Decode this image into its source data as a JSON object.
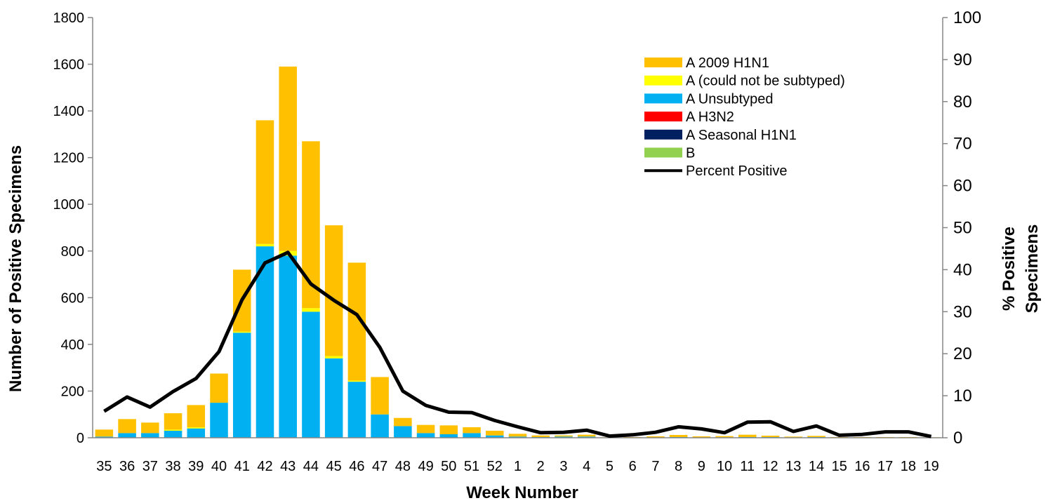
{
  "chart_data": {
    "type": "bar",
    "stacked": true,
    "xlabel": "Week Number",
    "ylabel": "Number of Positive Specimens",
    "y2label_lines": [
      "% Positive",
      "Specimens"
    ],
    "ylim": [
      0,
      1800
    ],
    "y2lim": [
      0,
      100
    ],
    "yticks": [
      0,
      200,
      400,
      600,
      800,
      1000,
      1200,
      1400,
      1600,
      1800
    ],
    "y2ticks": [
      0,
      10,
      20,
      30,
      40,
      50,
      60,
      70,
      80,
      90,
      100
    ],
    "grid": false,
    "legend_position": "top-right",
    "categories": [
      "35",
      "36",
      "37",
      "38",
      "39",
      "40",
      "41",
      "42",
      "43",
      "44",
      "45",
      "46",
      "47",
      "48",
      "49",
      "50",
      "51",
      "52",
      "1",
      "2",
      "3",
      "4",
      "5",
      "6",
      "7",
      "8",
      "9",
      "10",
      "11",
      "12",
      "13",
      "14",
      "15",
      "16",
      "17",
      "18",
      "19"
    ],
    "series": [
      {
        "name": "B",
        "color": "#92d050",
        "values": [
          0,
          0,
          0,
          0,
          0,
          0,
          0,
          0,
          0,
          0,
          0,
          0,
          0,
          0,
          0,
          0,
          0,
          0,
          0,
          0,
          0,
          0,
          0,
          0,
          0,
          0,
          0,
          0,
          0,
          0,
          0,
          0,
          0,
          0,
          0,
          0,
          0
        ]
      },
      {
        "name": "A Seasonal H1N1",
        "color": "#002060",
        "values": [
          0,
          0,
          0,
          0,
          0,
          0,
          0,
          0,
          0,
          0,
          0,
          0,
          0,
          0,
          0,
          0,
          0,
          0,
          0,
          0,
          0,
          0,
          0,
          0,
          0,
          0,
          0,
          0,
          0,
          0,
          0,
          0,
          0,
          0,
          0,
          0,
          0
        ]
      },
      {
        "name": "A H3N2",
        "color": "#ff0000",
        "values": [
          0,
          0,
          0,
          0,
          0,
          0,
          0,
          0,
          0,
          0,
          0,
          0,
          0,
          0,
          0,
          0,
          0,
          0,
          0,
          0,
          0,
          0,
          0,
          0,
          0,
          0,
          0,
          0,
          0,
          0,
          0,
          0,
          0,
          0,
          0,
          0,
          0
        ]
      },
      {
        "name": "A Unsubtyped",
        "color": "#00b0f0",
        "values": [
          5,
          20,
          20,
          30,
          40,
          150,
          450,
          820,
          780,
          540,
          340,
          240,
          100,
          50,
          20,
          15,
          20,
          10,
          5,
          3,
          5,
          5,
          0,
          0,
          0,
          3,
          0,
          2,
          3,
          3,
          2,
          3,
          0,
          0,
          0,
          0,
          0
        ]
      },
      {
        "name": "A (could not be subtyped)",
        "color": "#ffff00",
        "values": [
          0,
          0,
          0,
          5,
          5,
          0,
          5,
          10,
          20,
          15,
          10,
          5,
          0,
          0,
          0,
          0,
          0,
          0,
          0,
          0,
          0,
          0,
          0,
          0,
          0,
          0,
          0,
          0,
          0,
          0,
          0,
          0,
          0,
          0,
          0,
          0,
          0
        ]
      },
      {
        "name": "A 2009 H1N1",
        "color": "#ffc000",
        "values": [
          30,
          60,
          45,
          70,
          95,
          125,
          265,
          530,
          790,
          715,
          560,
          505,
          160,
          35,
          35,
          38,
          25,
          20,
          12,
          7,
          5,
          8,
          2,
          3,
          6,
          9,
          6,
          5,
          10,
          6,
          3,
          5,
          3,
          3,
          3,
          3,
          2
        ]
      }
    ],
    "line": {
      "name": "Percent Positive",
      "color": "#000000",
      "axis": "right",
      "values": [
        6.3,
        9.7,
        7.3,
        11,
        14.1,
        20.5,
        32.8,
        41.6,
        44.1,
        36.6,
        32.7,
        29.3,
        21.5,
        11.1,
        7.7,
        6.1,
        6.0,
        4.1,
        2.6,
        1.2,
        1.3,
        1.8,
        0.4,
        0.7,
        1.3,
        2.6,
        2.1,
        1.2,
        3.7,
        3.8,
        1.5,
        2.8,
        0.6,
        0.8,
        1.4,
        1.4,
        0.3
      ]
    },
    "legend_order": [
      "A 2009 H1N1",
      "A (could not be subtyped)",
      "A Unsubtyped",
      "A H3N2",
      "A Seasonal H1N1",
      "B",
      "Percent Positive"
    ]
  }
}
